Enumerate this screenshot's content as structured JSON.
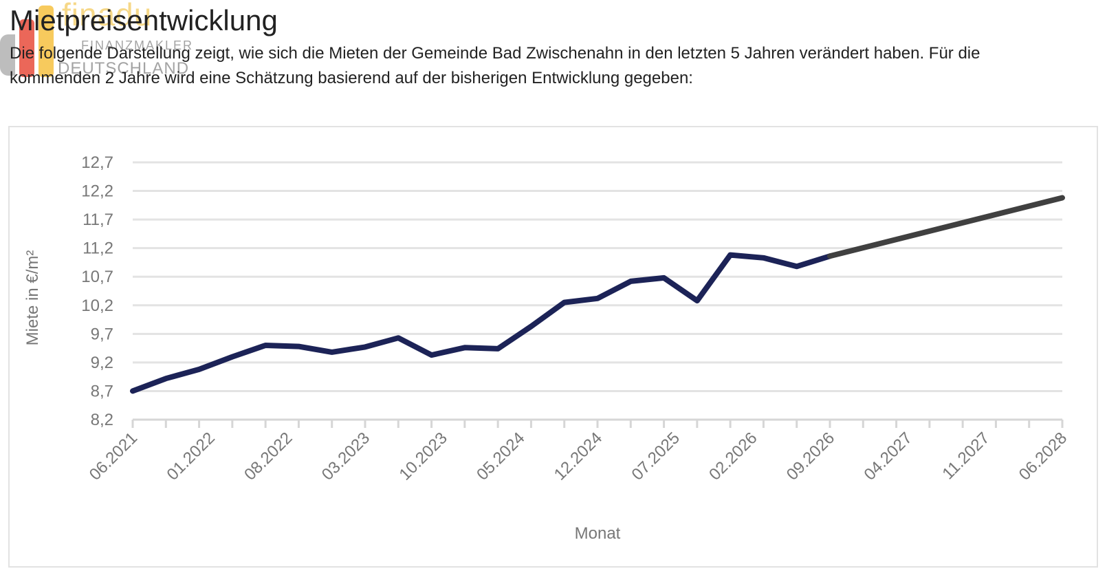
{
  "header": {
    "title": "Mietpreisentwicklung",
    "intro": "Die folgende Darstellung zeigt, wie sich die Mieten der Gemeinde Bad Zwischenahn in den letzten 5 Jahren verändert haben. Für die kommenden 2 Jahre wird eine Schätzung basierend auf der bisherigen Entwicklung gegeben:"
  },
  "watermark": {
    "brand": "finadu",
    "line1": "FINANZMAKLER",
    "line2": "DEUTSCHLAND"
  },
  "colors": {
    "actual": "#1c2357",
    "forecast": "#404040",
    "grid": "#e3e3e3",
    "axis_text": "#777777"
  },
  "chart_data": {
    "type": "line",
    "xlabel": "Monat",
    "ylabel": "Miete in €/m²",
    "ylim": [
      8.2,
      12.7
    ],
    "yticks": [
      "8,2",
      "8,7",
      "9,2",
      "9,7",
      "10,2",
      "10,7",
      "11,2",
      "11,7",
      "12,2",
      "12,7"
    ],
    "x_tick_labels": [
      "06.2021",
      "01.2022",
      "08.2022",
      "03.2023",
      "10.2023",
      "05.2024",
      "12.2024",
      "07.2025",
      "02.2026",
      "09.2026",
      "04.2027",
      "11.2027",
      "06.2028"
    ],
    "grid": "horizontal",
    "legend": "none",
    "series": [
      {
        "role": "actual",
        "x": [
          "06.2021",
          "09.2021",
          "12.2021",
          "03.2022",
          "06.2022",
          "09.2022",
          "12.2022",
          "03.2023",
          "06.2023",
          "09.2023",
          "12.2023",
          "03.2024",
          "06.2024",
          "09.2024",
          "12.2024",
          "03.2025",
          "06.2025",
          "09.2025",
          "12.2025",
          "03.2026",
          "06.2026",
          "09.2026"
        ],
        "values": [
          8.7,
          8.92,
          9.08,
          9.3,
          9.5,
          9.48,
          9.38,
          9.47,
          9.63,
          9.33,
          9.46,
          9.44,
          9.83,
          10.25,
          10.32,
          10.62,
          10.68,
          10.28,
          11.08,
          11.03,
          10.88,
          11.06
        ]
      },
      {
        "role": "forecast",
        "x": [
          "09.2026",
          "06.2028"
        ],
        "values": [
          11.06,
          12.08
        ]
      }
    ]
  }
}
